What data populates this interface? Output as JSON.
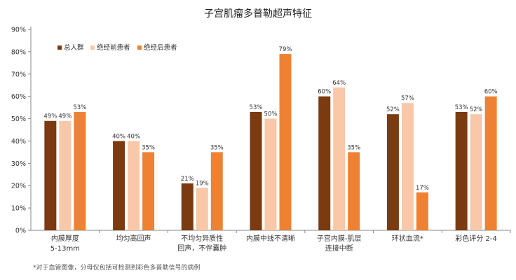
{
  "chart_data": {
    "type": "bar",
    "title": "子宫肌瘤多普勒超声特征",
    "categories": [
      [
        "内膜厚度",
        "5-13mm"
      ],
      [
        "均匀高回声"
      ],
      [
        "不均匀异质性",
        "回声，不伴囊肿"
      ],
      [
        "内膜中线不清晰"
      ],
      [
        "子宫内膜-肌层",
        "连接中断"
      ],
      [
        "环状血流*"
      ],
      [
        "彩色评分 2-4"
      ]
    ],
    "series": [
      {
        "name": "总人群",
        "color": "#7B3A10",
        "values": [
          49,
          40,
          21,
          53,
          60,
          52,
          53
        ]
      },
      {
        "name": "绝经前患者",
        "color": "#F8C8A8",
        "values": [
          49,
          40,
          19,
          50,
          64,
          57,
          52
        ]
      },
      {
        "name": "绝经后患者",
        "color": "#EE8232",
        "values": [
          53,
          35,
          35,
          79,
          35,
          17,
          60
        ]
      }
    ],
    "yticks": [
      "0%",
      "10%",
      "20%",
      "30%",
      "40%",
      "50%",
      "60%",
      "70%",
      "80%",
      "90%"
    ],
    "ylim": [
      0,
      90
    ],
    "value_suffix": "%",
    "legend_position": "top-left",
    "grid": false,
    "footnote": "*对于血管图像，分母仅包括可检测到彩色多普勒信号的病例"
  }
}
